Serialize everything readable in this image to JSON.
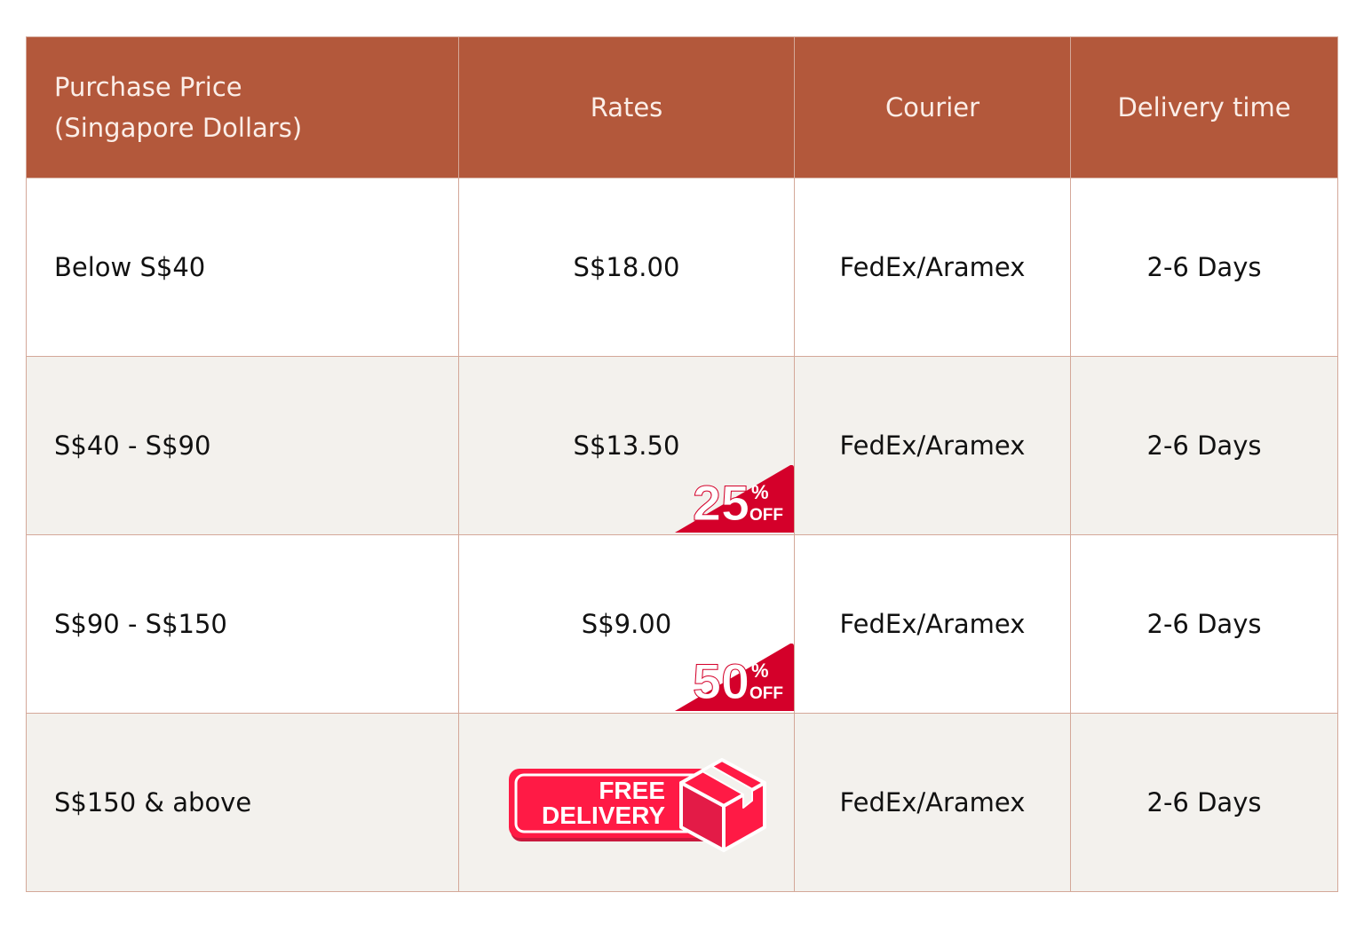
{
  "headers": [
    "Purchase Price\n(Singapore Dollars)",
    "Rates",
    "Courier",
    "Delivery time"
  ],
  "header_lines": [
    "Purchase Price",
    "(Singapore Dollars)"
  ],
  "rows": [
    {
      "price": "Below S$40",
      "rate": "S$18.00",
      "courier": "FedEx/Aramex",
      "time": "2-6 Days"
    },
    {
      "price": "S$40 - S$90",
      "rate": "S$13.50",
      "courier": "FedEx/Aramex",
      "time": "2-6 Days",
      "badge": {
        "num": "25",
        "pct": "%",
        "off": "OFF"
      }
    },
    {
      "price": "S$90 - S$150",
      "rate": "S$9.00",
      "courier": "FedEx/Aramex",
      "time": "2-6 Days",
      "badge": {
        "num": "50",
        "pct": "%",
        "off": "OFF"
      }
    },
    {
      "price": "S$150 & above",
      "rate_badge": {
        "line1": "FREE",
        "line2": "DELIVERY"
      },
      "courier": "FedEx/Aramex",
      "time": "2-6 Days"
    }
  ],
  "colors": {
    "header": "#b3583b",
    "badge": "#d4002a",
    "free_delivery": "#ff1a45",
    "border": "#d4a899",
    "alt_row": "#f3f1ed"
  }
}
